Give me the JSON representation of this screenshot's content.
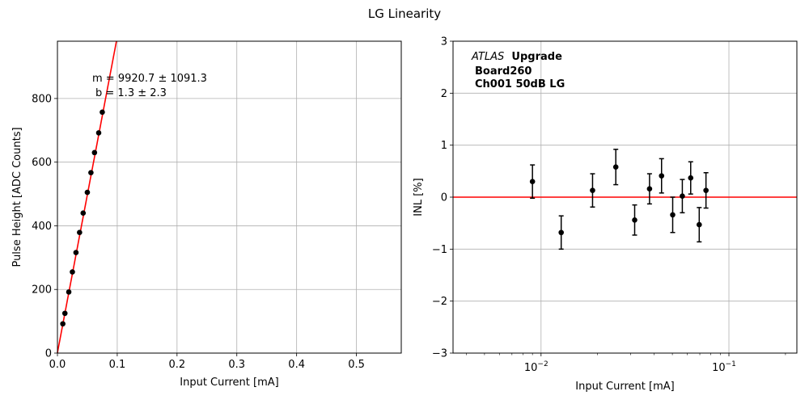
{
  "figure": {
    "title": "LG Linearity"
  },
  "chart_data": [
    {
      "type": "scatter",
      "name": "pulse-height-fit",
      "xlabel": "Input Current [mA]",
      "ylabel": "Pulse Height [ADC Counts]",
      "xlim": [
        0,
        0.575
      ],
      "ylim": [
        0,
        980
      ],
      "xticks": [
        0.0,
        0.1,
        0.2,
        0.3,
        0.4,
        0.5
      ],
      "xtick_labels": [
        "0.0",
        "0.1",
        "0.2",
        "0.3",
        "0.4",
        "0.5"
      ],
      "yticks": [
        0,
        200,
        400,
        600,
        800
      ],
      "ytick_labels": [
        "0",
        "200",
        "400",
        "600",
        "800"
      ],
      "grid": true,
      "fit": {
        "slope": 9920.7,
        "intercept": 1.3,
        "color": "#ff0000"
      },
      "fit_label_m": "m = 9920.7 ± 1091.3",
      "fit_label_b": "b = 1.3 ± 2.3",
      "marker_color": "#000000",
      "x": [
        0.009,
        0.0125,
        0.019,
        0.025,
        0.031,
        0.037,
        0.043,
        0.05,
        0.056,
        0.062,
        0.069,
        0.075
      ],
      "y": [
        92,
        125,
        192,
        255,
        316,
        379,
        440,
        505,
        567,
        630,
        692,
        757
      ]
    },
    {
      "type": "scatter",
      "name": "inl",
      "xscale": "log",
      "xlabel": "Input Current [mA]",
      "ylabel": "INL [%]",
      "xlim": [
        0.0034,
        0.23
      ],
      "ylim": [
        -3,
        3
      ],
      "xticks": [
        0.01,
        0.1
      ],
      "xtick_label_base": "10",
      "xtick_label_exps": [
        "−2",
        "−1"
      ],
      "yticks": [
        -3,
        -2,
        -1,
        0,
        1,
        2,
        3
      ],
      "ytick_labels": [
        "−3",
        "−2",
        "−1",
        "0",
        "1",
        "2",
        "3"
      ],
      "grid": true,
      "reference_line": {
        "y": 0,
        "color": "#ff0000"
      },
      "annotation_italic": "ATLAS",
      "annotation_bold_1": "Upgrade",
      "annotation_line2": "Board260",
      "annotation_line3": "Ch001 50dB LG",
      "marker_color": "#000000",
      "x": [
        0.009,
        0.0128,
        0.0188,
        0.025,
        0.0315,
        0.0378,
        0.0438,
        0.0502,
        0.0565,
        0.0626,
        0.0695,
        0.0755
      ],
      "y": [
        0.3,
        -0.68,
        0.13,
        0.58,
        -0.44,
        0.16,
        0.41,
        -0.34,
        0.02,
        0.37,
        -0.53,
        0.13
      ],
      "yerr": [
        0.32,
        0.32,
        0.32,
        0.34,
        0.29,
        0.29,
        0.33,
        0.34,
        0.32,
        0.31,
        0.33,
        0.34
      ]
    }
  ]
}
